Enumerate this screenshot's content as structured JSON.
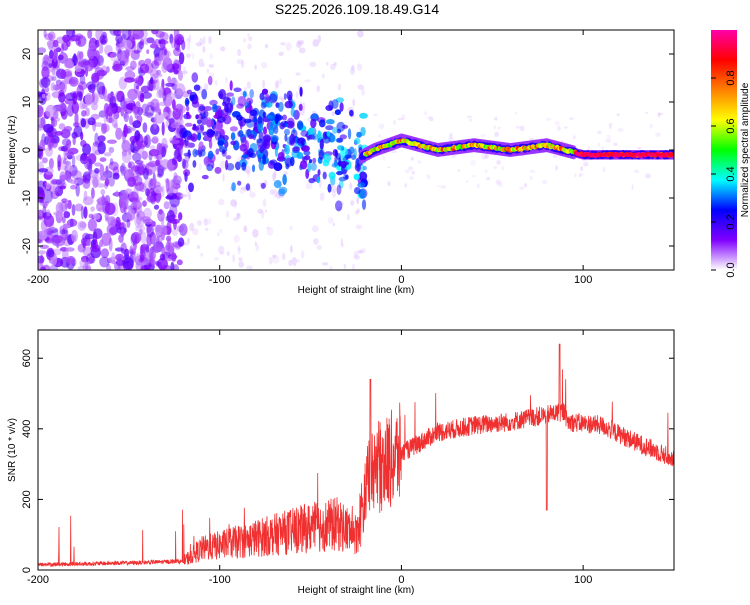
{
  "title": "S225.2026.109.18.49.G14",
  "chart_data": [
    {
      "type": "heatmap",
      "name": "spectrogram",
      "xlabel": "Height of straight line (km)",
      "ylabel": "Frequency (Hz)",
      "xlim": [
        -200,
        150
      ],
      "ylim": [
        -25,
        25
      ],
      "xticks": [
        -200,
        -100,
        0,
        100
      ],
      "yticks": [
        -20,
        -10,
        0,
        10,
        20
      ],
      "colorbar": {
        "label": "Normalized spectral amplitude",
        "range": [
          0,
          1
        ],
        "ticks": [
          0.0,
          0.2,
          0.4,
          0.6,
          0.8
        ],
        "tick_labels": [
          "0.0",
          "0.2",
          "0.4",
          "0.6",
          "0.8"
        ],
        "colors": [
          "#ffffff",
          "#8000ff",
          "#0000ff",
          "#00ffff",
          "#00ff00",
          "#ffff00",
          "#ff8000",
          "#ff0000",
          "#ff00aa"
        ]
      },
      "ridge": {
        "description_points_x": [
          -120,
          -100,
          -80,
          -60,
          -40,
          -25,
          -15,
          0,
          20,
          40,
          60,
          80,
          100,
          120,
          150
        ],
        "description_points_y": [
          3,
          4,
          3,
          3,
          1,
          -2,
          0,
          2,
          0,
          1,
          0,
          1,
          -1,
          -1,
          -1
        ]
      }
    },
    {
      "type": "line",
      "name": "snr",
      "xlabel": "Height of straight line (km)",
      "ylabel": "SNR (10 * v/v)",
      "xlim": [
        -200,
        150
      ],
      "ylim": [
        0,
        680
      ],
      "xticks": [
        -200,
        -100,
        0,
        100
      ],
      "yticks": [
        0,
        200,
        400,
        600
      ],
      "series": [
        {
          "name": "SNR",
          "color": "#f03030",
          "envelope_x": [
            -200,
            -150,
            -120,
            -110,
            -90,
            -70,
            -50,
            -35,
            -25,
            -18,
            -10,
            0,
            20,
            40,
            60,
            80,
            90,
            91,
            110,
            130,
            150
          ],
          "envelope_y": [
            15,
            20,
            25,
            60,
            80,
            100,
            120,
            130,
            100,
            250,
            300,
            330,
            390,
            410,
            420,
            440,
            450,
            420,
            410,
            360,
            315
          ]
        }
      ]
    }
  ]
}
